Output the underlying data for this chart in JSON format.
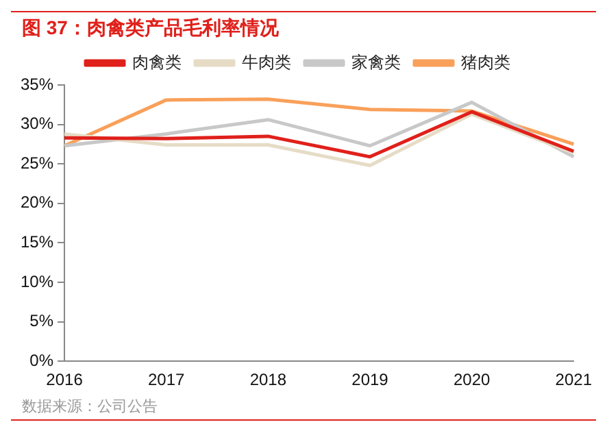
{
  "chart_data": {
    "type": "line",
    "title": "图 37：肉禽类产品毛利率情况",
    "categories": [
      "2016",
      "2017",
      "2018",
      "2019",
      "2020",
      "2021"
    ],
    "series": [
      {
        "name": "肉禽类",
        "color": "#e0201b",
        "values": [
          28.3,
          28.2,
          28.5,
          25.9,
          31.6,
          26.6
        ]
      },
      {
        "name": "牛肉类",
        "color": "#e6dcc6",
        "values": [
          28.8,
          27.4,
          27.4,
          24.8,
          31.3,
          26.4
        ]
      },
      {
        "name": "家禽类",
        "color": "#c8c8c8",
        "values": [
          27.3,
          28.8,
          30.6,
          27.3,
          32.8,
          25.9
        ]
      },
      {
        "name": "猪肉类",
        "color": "#f9a05a",
        "values": [
          27.3,
          33.1,
          33.2,
          31.9,
          31.7,
          27.5
        ]
      }
    ],
    "ylim": [
      0,
      35
    ],
    "yticks": [
      {
        "value": 0,
        "label": "0%"
      },
      {
        "value": 5,
        "label": "5%"
      },
      {
        "value": 10,
        "label": "10%"
      },
      {
        "value": 15,
        "label": "15%"
      },
      {
        "value": 20,
        "label": "20%"
      },
      {
        "value": 25,
        "label": "25%"
      },
      {
        "value": 30,
        "label": "30%"
      },
      {
        "value": 35,
        "label": "35%"
      }
    ],
    "grid": false,
    "legend": "top",
    "marker": "none",
    "line_style": "solid",
    "annotations": [
      "数据来源：公司公告"
    ]
  }
}
